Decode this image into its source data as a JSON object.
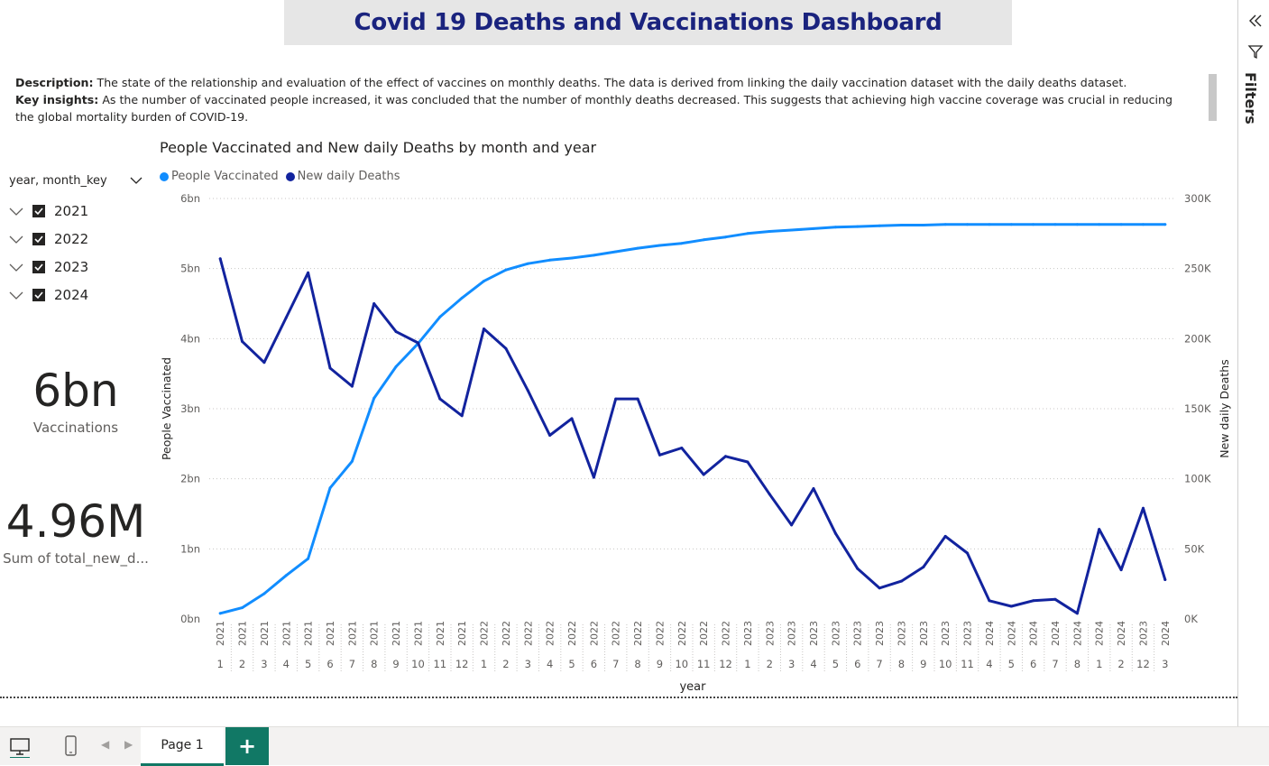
{
  "title": "Covid 19 Deaths and Vaccinations Dashboard",
  "description": {
    "desc_label": "Description:",
    "desc_text": " The state of the relationship and evaluation of the effect of vaccines on monthly deaths. The data is derived from linking the daily vaccination dataset with the daily deaths dataset.",
    "insight_label": "Key insights:",
    "insight_text": " As the number of vaccinated people increased, it was concluded that the number of monthly deaths decreased. This suggests that achieving high vaccine coverage was crucial in reducing the global mortality burden of COVID-19."
  },
  "slicer": {
    "header": "year, month_key",
    "items": [
      {
        "label": "2021",
        "checked": true
      },
      {
        "label": "2022",
        "checked": true
      },
      {
        "label": "2023",
        "checked": true
      },
      {
        "label": "2024",
        "checked": true
      }
    ]
  },
  "cards": {
    "vaccinations_value": "6bn",
    "vaccinations_label": "Vaccinations",
    "deaths_value": "4.96M",
    "deaths_label": "Sum of total_new_d..."
  },
  "filters_label": "Filters",
  "page_tab": "Page 1",
  "colors": {
    "vaccinated": "#118dff",
    "deaths": "#12239e",
    "title": "#1a237e",
    "accent": "#117865"
  },
  "chart_data": {
    "type": "line",
    "title": "People Vaccinated and New daily Deaths by month and year",
    "xlabel": "year",
    "ylabel_left": "People Vaccinated",
    "ylabel_right": "New daily Deaths",
    "yleft_ticks": [
      "0bn",
      "1bn",
      "2bn",
      "3bn",
      "4bn",
      "5bn",
      "6bn"
    ],
    "yright_ticks": [
      "0K",
      "50K",
      "100K",
      "150K",
      "200K",
      "250K",
      "300K"
    ],
    "ylim_left": [
      0,
      6
    ],
    "ylim_right": [
      0,
      300
    ],
    "legend_position": "top-left",
    "grid": true,
    "x_years": [
      "2021",
      "2021",
      "2021",
      "2021",
      "2021",
      "2021",
      "2021",
      "2021",
      "2021",
      "2021",
      "2021",
      "2021",
      "2022",
      "2022",
      "2022",
      "2022",
      "2022",
      "2022",
      "2022",
      "2022",
      "2022",
      "2022",
      "2022",
      "2022",
      "2023",
      "2023",
      "2023",
      "2023",
      "2023",
      "2023",
      "2023",
      "2023",
      "2023",
      "2023",
      "2023",
      "2024",
      "2024",
      "2024",
      "2024",
      "2024",
      "2024",
      "2024",
      "2023",
      "2024"
    ],
    "x_months": [
      "1",
      "2",
      "3",
      "4",
      "5",
      "6",
      "7",
      "8",
      "9",
      "10",
      "11",
      "12",
      "1",
      "2",
      "3",
      "4",
      "5",
      "6",
      "7",
      "8",
      "9",
      "10",
      "11",
      "12",
      "1",
      "2",
      "3",
      "4",
      "5",
      "6",
      "7",
      "8",
      "9",
      "10",
      "11",
      "4",
      "5",
      "6",
      "7",
      "8",
      "1",
      "2",
      "12",
      "3"
    ],
    "series": [
      {
        "name": "People Vaccinated",
        "unit": "bn",
        "values": [
          0.08,
          0.16,
          0.36,
          0.62,
          0.86,
          1.87,
          2.25,
          3.15,
          3.6,
          3.93,
          4.31,
          4.58,
          4.82,
          4.98,
          5.07,
          5.12,
          5.15,
          5.19,
          5.24,
          5.29,
          5.33,
          5.36,
          5.41,
          5.45,
          5.5,
          5.53,
          5.55,
          5.57,
          5.59,
          5.6,
          5.61,
          5.62,
          5.62,
          5.63,
          5.63,
          5.63,
          5.63,
          5.63,
          5.63,
          5.63,
          5.63,
          5.63,
          5.63,
          5.63
        ]
      },
      {
        "name": "New daily Deaths",
        "unit": "K",
        "values": [
          257,
          198,
          183,
          215,
          247,
          179,
          166,
          225,
          205,
          197,
          157,
          145,
          207,
          193,
          163,
          131,
          143,
          101,
          157,
          157,
          117,
          122,
          103,
          116,
          112,
          89,
          67,
          93,
          61,
          36,
          22,
          27,
          37,
          59,
          47,
          13,
          9,
          13,
          14,
          4,
          64,
          35,
          79,
          28
        ]
      }
    ]
  }
}
